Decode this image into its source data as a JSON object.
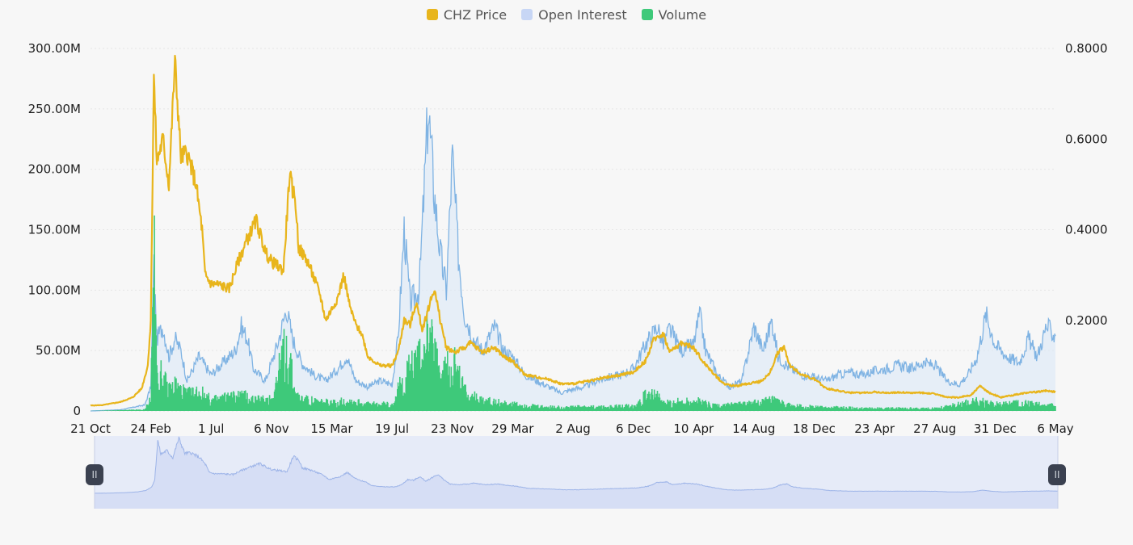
{
  "legend": [
    {
      "label": "CHZ Price",
      "color": "#e8b51c"
    },
    {
      "label": "Open Interest",
      "color": "#c7d6f5"
    },
    {
      "label": "Volume",
      "color": "#3ec97a"
    }
  ],
  "navigator": {
    "left_handle_icon": "pause-icon",
    "right_handle_icon": "pause-icon",
    "handle_glyph": "II"
  },
  "chart_data": {
    "type": "line",
    "x_ticks": [
      "21 Oct",
      "24 Feb",
      "1 Jul",
      "6 Nov",
      "15 Mar",
      "19 Jul",
      "23 Nov",
      "29 Mar",
      "2 Aug",
      "6 Dec",
      "10 Apr",
      "14 Aug",
      "18 Dec",
      "23 Apr",
      "27 Aug",
      "31 Dec",
      "6 May"
    ],
    "y_left_ticks": [
      "0",
      "50.00M",
      "100.00M",
      "150.00M",
      "200.00M",
      "250.00M",
      "300.00M"
    ],
    "y_left_range": [
      0,
      300000000
    ],
    "y_right_ticks": [
      "0.2000",
      "0.4000",
      "0.6000",
      "0.8000"
    ],
    "y_right_range": [
      0,
      0.8
    ],
    "grid": true,
    "legend_position": "top-center",
    "series": [
      {
        "name": "CHZ Price",
        "axis": "right",
        "color": "#e8b51c",
        "points": [
          [
            0,
            0.012
          ],
          [
            0.2,
            0.013
          ],
          [
            0.5,
            0.02
          ],
          [
            0.7,
            0.03
          ],
          [
            0.85,
            0.05
          ],
          [
            0.95,
            0.1
          ],
          [
            1.0,
            0.2
          ],
          [
            1.05,
            0.74
          ],
          [
            1.1,
            0.55
          ],
          [
            1.2,
            0.6
          ],
          [
            1.3,
            0.5
          ],
          [
            1.4,
            0.77
          ],
          [
            1.5,
            0.56
          ],
          [
            1.6,
            0.57
          ],
          [
            1.75,
            0.5
          ],
          [
            1.85,
            0.4
          ],
          [
            1.9,
            0.3
          ],
          [
            2.0,
            0.28
          ],
          [
            2.1,
            0.28
          ],
          [
            2.3,
            0.27
          ],
          [
            2.45,
            0.33
          ],
          [
            2.6,
            0.38
          ],
          [
            2.75,
            0.42
          ],
          [
            2.9,
            0.35
          ],
          [
            3.0,
            0.33
          ],
          [
            3.2,
            0.31
          ],
          [
            3.3,
            0.52
          ],
          [
            3.4,
            0.46
          ],
          [
            3.45,
            0.36
          ],
          [
            3.6,
            0.33
          ],
          [
            3.8,
            0.26
          ],
          [
            3.9,
            0.2
          ],
          [
            4.1,
            0.25
          ],
          [
            4.2,
            0.3
          ],
          [
            4.3,
            0.23
          ],
          [
            4.4,
            0.19
          ],
          [
            4.5,
            0.17
          ],
          [
            4.6,
            0.12
          ],
          [
            4.8,
            0.1
          ],
          [
            5.0,
            0.1
          ],
          [
            5.1,
            0.13
          ],
          [
            5.2,
            0.2
          ],
          [
            5.3,
            0.19
          ],
          [
            5.4,
            0.24
          ],
          [
            5.5,
            0.18
          ],
          [
            5.7,
            0.27
          ],
          [
            5.8,
            0.2
          ],
          [
            5.9,
            0.14
          ],
          [
            6.05,
            0.13
          ],
          [
            6.2,
            0.14
          ],
          [
            6.3,
            0.15
          ],
          [
            6.5,
            0.13
          ],
          [
            6.7,
            0.14
          ],
          [
            6.85,
            0.12
          ],
          [
            7.0,
            0.11
          ],
          [
            7.2,
            0.08
          ],
          [
            7.4,
            0.075
          ],
          [
            7.6,
            0.07
          ],
          [
            7.8,
            0.06
          ],
          [
            8.0,
            0.06
          ],
          [
            8.2,
            0.065
          ],
          [
            8.4,
            0.07
          ],
          [
            8.6,
            0.075
          ],
          [
            8.8,
            0.08
          ],
          [
            9.0,
            0.085
          ],
          [
            9.2,
            0.11
          ],
          [
            9.35,
            0.16
          ],
          [
            9.5,
            0.17
          ],
          [
            9.6,
            0.13
          ],
          [
            9.8,
            0.15
          ],
          [
            10.0,
            0.14
          ],
          [
            10.15,
            0.11
          ],
          [
            10.35,
            0.08
          ],
          [
            10.5,
            0.06
          ],
          [
            10.7,
            0.055
          ],
          [
            10.9,
            0.06
          ],
          [
            11.1,
            0.065
          ],
          [
            11.25,
            0.08
          ],
          [
            11.4,
            0.13
          ],
          [
            11.5,
            0.14
          ],
          [
            11.6,
            0.1
          ],
          [
            11.8,
            0.08
          ],
          [
            12.0,
            0.07
          ],
          [
            12.2,
            0.05
          ],
          [
            12.4,
            0.045
          ],
          [
            12.6,
            0.04
          ],
          [
            12.8,
            0.04
          ],
          [
            13.0,
            0.042
          ],
          [
            13.2,
            0.04
          ],
          [
            13.4,
            0.041
          ],
          [
            13.6,
            0.04
          ],
          [
            13.8,
            0.04
          ],
          [
            14.0,
            0.038
          ],
          [
            14.2,
            0.03
          ],
          [
            14.4,
            0.03
          ],
          [
            14.6,
            0.035
          ],
          [
            14.75,
            0.055
          ],
          [
            14.9,
            0.04
          ],
          [
            15.1,
            0.03
          ],
          [
            15.3,
            0.035
          ],
          [
            15.5,
            0.04
          ],
          [
            15.7,
            0.042
          ],
          [
            15.85,
            0.045
          ],
          [
            16.0,
            0.042
          ]
        ]
      },
      {
        "name": "Open Interest",
        "axis": "left",
        "color": "#7fb3e3",
        "points": [
          [
            0,
            0
          ],
          [
            0.5,
            1000000
          ],
          [
            0.9,
            5000000
          ],
          [
            1.0,
            20000000
          ],
          [
            1.05,
            120000000
          ],
          [
            1.1,
            60000000
          ],
          [
            1.2,
            70000000
          ],
          [
            1.3,
            45000000
          ],
          [
            1.4,
            60000000
          ],
          [
            1.5,
            50000000
          ],
          [
            1.6,
            25000000
          ],
          [
            1.8,
            45000000
          ],
          [
            2.0,
            30000000
          ],
          [
            2.2,
            40000000
          ],
          [
            2.4,
            50000000
          ],
          [
            2.5,
            70000000
          ],
          [
            2.6,
            60000000
          ],
          [
            2.7,
            35000000
          ],
          [
            2.9,
            25000000
          ],
          [
            3.0,
            40000000
          ],
          [
            3.1,
            55000000
          ],
          [
            3.25,
            85000000
          ],
          [
            3.35,
            60000000
          ],
          [
            3.5,
            40000000
          ],
          [
            3.7,
            30000000
          ],
          [
            3.9,
            25000000
          ],
          [
            4.1,
            35000000
          ],
          [
            4.25,
            45000000
          ],
          [
            4.4,
            25000000
          ],
          [
            4.6,
            20000000
          ],
          [
            4.8,
            25000000
          ],
          [
            5.0,
            22000000
          ],
          [
            5.1,
            60000000
          ],
          [
            5.2,
            150000000
          ],
          [
            5.3,
            90000000
          ],
          [
            5.45,
            100000000
          ],
          [
            5.6,
            250000000
          ],
          [
            5.7,
            180000000
          ],
          [
            5.8,
            130000000
          ],
          [
            5.9,
            100000000
          ],
          [
            6.0,
            210000000
          ],
          [
            6.1,
            130000000
          ],
          [
            6.2,
            80000000
          ],
          [
            6.35,
            60000000
          ],
          [
            6.5,
            50000000
          ],
          [
            6.7,
            70000000
          ],
          [
            6.85,
            50000000
          ],
          [
            7.0,
            45000000
          ],
          [
            7.2,
            30000000
          ],
          [
            7.4,
            25000000
          ],
          [
            7.6,
            20000000
          ],
          [
            7.8,
            15000000
          ],
          [
            8.0,
            18000000
          ],
          [
            8.2,
            20000000
          ],
          [
            8.4,
            25000000
          ],
          [
            8.6,
            28000000
          ],
          [
            8.8,
            30000000
          ],
          [
            9.0,
            35000000
          ],
          [
            9.2,
            55000000
          ],
          [
            9.4,
            70000000
          ],
          [
            9.5,
            55000000
          ],
          [
            9.6,
            68000000
          ],
          [
            9.8,
            50000000
          ],
          [
            10.0,
            55000000
          ],
          [
            10.1,
            80000000
          ],
          [
            10.2,
            50000000
          ],
          [
            10.4,
            30000000
          ],
          [
            10.6,
            20000000
          ],
          [
            10.8,
            25000000
          ],
          [
            11.0,
            70000000
          ],
          [
            11.15,
            50000000
          ],
          [
            11.3,
            75000000
          ],
          [
            11.4,
            45000000
          ],
          [
            11.6,
            35000000
          ],
          [
            11.8,
            30000000
          ],
          [
            12.0,
            28000000
          ],
          [
            12.2,
            25000000
          ],
          [
            12.4,
            30000000
          ],
          [
            12.6,
            32000000
          ],
          [
            12.8,
            30000000
          ],
          [
            13.0,
            33000000
          ],
          [
            13.2,
            35000000
          ],
          [
            13.4,
            38000000
          ],
          [
            13.6,
            35000000
          ],
          [
            13.8,
            40000000
          ],
          [
            14.0,
            38000000
          ],
          [
            14.2,
            25000000
          ],
          [
            14.4,
            22000000
          ],
          [
            14.55,
            30000000
          ],
          [
            14.7,
            45000000
          ],
          [
            14.85,
            80000000
          ],
          [
            15.0,
            55000000
          ],
          [
            15.2,
            45000000
          ],
          [
            15.4,
            40000000
          ],
          [
            15.55,
            60000000
          ],
          [
            15.7,
            45000000
          ],
          [
            15.85,
            70000000
          ],
          [
            16.0,
            62000000
          ]
        ]
      },
      {
        "name": "Volume",
        "axis": "left",
        "color": "#3ec97a",
        "points": [
          [
            0,
            0
          ],
          [
            0.9,
            1000000
          ],
          [
            1.0,
            10000000
          ],
          [
            1.05,
            120000000
          ],
          [
            1.1,
            30000000
          ],
          [
            1.2,
            25000000
          ],
          [
            1.3,
            15000000
          ],
          [
            1.4,
            20000000
          ],
          [
            1.6,
            12000000
          ],
          [
            1.8,
            15000000
          ],
          [
            2.0,
            8000000
          ],
          [
            2.2,
            10000000
          ],
          [
            2.5,
            12000000
          ],
          [
            2.8,
            8000000
          ],
          [
            3.0,
            10000000
          ],
          [
            3.25,
            50000000
          ],
          [
            3.4,
            12000000
          ],
          [
            3.6,
            8000000
          ],
          [
            4.0,
            6000000
          ],
          [
            4.3,
            8000000
          ],
          [
            4.6,
            5000000
          ],
          [
            5.0,
            5000000
          ],
          [
            5.2,
            25000000
          ],
          [
            5.45,
            40000000
          ],
          [
            5.6,
            60000000
          ],
          [
            5.8,
            25000000
          ],
          [
            6.0,
            40000000
          ],
          [
            6.2,
            15000000
          ],
          [
            6.5,
            8000000
          ],
          [
            7.0,
            5000000
          ],
          [
            7.5,
            3000000
          ],
          [
            8.0,
            3000000
          ],
          [
            8.5,
            3000000
          ],
          [
            9.0,
            4000000
          ],
          [
            9.3,
            15000000
          ],
          [
            9.5,
            6000000
          ],
          [
            10.0,
            8000000
          ],
          [
            10.4,
            4000000
          ],
          [
            11.0,
            6000000
          ],
          [
            11.3,
            8000000
          ],
          [
            11.6,
            4000000
          ],
          [
            12.0,
            3000000
          ],
          [
            13.0,
            2000000
          ],
          [
            14.0,
            2000000
          ],
          [
            14.7,
            8000000
          ],
          [
            15.0,
            5000000
          ],
          [
            15.5,
            6000000
          ],
          [
            16.0,
            4000000
          ]
        ]
      }
    ]
  }
}
